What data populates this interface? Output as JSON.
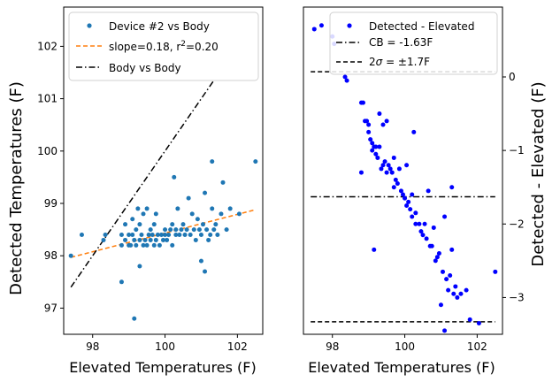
{
  "chart_data": [
    {
      "type": "scatter",
      "xlabel": "Elevated Temperatures (F)",
      "ylabel": "Detected Temperatures (F)",
      "xlim": [
        97.2,
        102.7
      ],
      "ylim": [
        96.5,
        102.75
      ],
      "xticks": [
        "98",
        "100",
        "102"
      ],
      "yticks": [
        "97",
        "98",
        "99",
        "100",
        "101",
        "102"
      ],
      "legend_position": "upper-left",
      "colors": {
        "points": "#1f77b4",
        "fit": "#ff7f0e",
        "identity": "#000000"
      },
      "legend": [
        {
          "label": "Device #2 vs Body",
          "style": "marker"
        },
        {
          "label": "slope=0.18, r²=0.20",
          "prefix": "slope=0.18, r",
          "sup": "2",
          "suffix": "=0.20",
          "style": "dashed"
        },
        {
          "label": "Body vs Body",
          "style": "dashdot"
        }
      ],
      "series": [
        {
          "name": "Device #2 vs Body",
          "points": [
            [
              97.4,
              98.0
            ],
            [
              97.7,
              98.4
            ],
            [
              98.3,
              98.3
            ],
            [
              98.35,
              98.4
            ],
            [
              98.8,
              98.2
            ],
            [
              98.8,
              97.5
            ],
            [
              98.8,
              98.4
            ],
            [
              98.9,
              98.3
            ],
            [
              98.9,
              98.6
            ],
            [
              99.0,
              98.2
            ],
            [
              99.0,
              98.4
            ],
            [
              99.05,
              98.2
            ],
            [
              99.1,
              98.7
            ],
            [
              99.1,
              98.4
            ],
            [
              99.15,
              96.8
            ],
            [
              99.15,
              98.3
            ],
            [
              99.2,
              98.2
            ],
            [
              99.2,
              98.5
            ],
            [
              99.25,
              98.9
            ],
            [
              99.3,
              97.8
            ],
            [
              99.3,
              98.3
            ],
            [
              99.3,
              98.6
            ],
            [
              99.35,
              98.4
            ],
            [
              99.4,
              98.2
            ],
            [
              99.4,
              98.8
            ],
            [
              99.45,
              98.3
            ],
            [
              99.5,
              98.2
            ],
            [
              99.5,
              98.9
            ],
            [
              99.55,
              98.4
            ],
            [
              99.6,
              98.3
            ],
            [
              99.6,
              98.5
            ],
            [
              99.65,
              98.4
            ],
            [
              99.7,
              98.6
            ],
            [
              99.7,
              98.2
            ],
            [
              99.75,
              98.8
            ],
            [
              99.75,
              98.3
            ],
            [
              99.8,
              98.4
            ],
            [
              99.85,
              98.2
            ],
            [
              99.9,
              98.4
            ],
            [
              99.95,
              98.3
            ],
            [
              100.0,
              98.4
            ],
            [
              100.0,
              98.5
            ],
            [
              100.05,
              98.3
            ],
            [
              100.1,
              98.4
            ],
            [
              100.15,
              98.5
            ],
            [
              100.2,
              98.2
            ],
            [
              100.2,
              98.6
            ],
            [
              100.25,
              99.5
            ],
            [
              100.3,
              98.4
            ],
            [
              100.3,
              98.5
            ],
            [
              100.35,
              98.9
            ],
            [
              100.4,
              98.4
            ],
            [
              100.45,
              98.5
            ],
            [
              100.5,
              98.6
            ],
            [
              100.55,
              98.4
            ],
            [
              100.6,
              98.5
            ],
            [
              100.65,
              99.1
            ],
            [
              100.7,
              98.4
            ],
            [
              100.75,
              98.8
            ],
            [
              100.8,
              98.5
            ],
            [
              100.85,
              98.3
            ],
            [
              100.9,
              98.7
            ],
            [
              100.95,
              98.5
            ],
            [
              101.0,
              97.9
            ],
            [
              101.0,
              98.4
            ],
            [
              101.05,
              98.6
            ],
            [
              101.1,
              99.2
            ],
            [
              101.1,
              97.7
            ],
            [
              101.15,
              98.5
            ],
            [
              101.2,
              98.3
            ],
            [
              101.25,
              98.4
            ],
            [
              101.3,
              99.8
            ],
            [
              101.3,
              98.9
            ],
            [
              101.35,
              98.5
            ],
            [
              101.4,
              98.6
            ],
            [
              101.45,
              98.4
            ],
            [
              101.55,
              98.8
            ],
            [
              101.6,
              99.4
            ],
            [
              101.7,
              98.5
            ],
            [
              101.8,
              98.9
            ],
            [
              102.05,
              98.8
            ],
            [
              102.5,
              99.8
            ]
          ]
        },
        {
          "name": "slope=0.18, r²=0.20",
          "line": [
            [
              97.4,
              97.97
            ],
            [
              102.5,
              98.88
            ]
          ]
        },
        {
          "name": "Body vs Body",
          "line": [
            [
              97.4,
              97.4
            ],
            [
              102.5,
              102.5
            ]
          ]
        }
      ]
    },
    {
      "type": "scatter",
      "xlabel": "Elevated Temperatures (F)",
      "ylabel": "Detected - Elevated (F)",
      "xlim": [
        97.2,
        102.7
      ],
      "ylim": [
        -3.5,
        0.95
      ],
      "xticks": [
        "98",
        "100",
        "102"
      ],
      "yticks": [
        "0",
        "−1",
        "−2",
        "−3"
      ],
      "legend_position": "upper-right",
      "colors": {
        "points": "#0000ff",
        "lines": "#000000",
        "grey": "#bdbdbd"
      },
      "legend": [
        {
          "label": "Detected - Elevated",
          "style": "marker"
        },
        {
          "label": "CB = -1.63F",
          "style": "dashdot"
        },
        {
          "label": "2σ = ±1.7F",
          "prefix": "2",
          "italic": "σ",
          "suffix": " = ±1.7F",
          "style": "dashed"
        }
      ],
      "series": [
        {
          "name": "Detected - Elevated",
          "points": [
            [
              97.5,
              0.65
            ],
            [
              97.7,
              0.7
            ],
            [
              98.0,
              0.55
            ],
            [
              98.05,
              0.45
            ],
            [
              98.35,
              0.0
            ],
            [
              98.4,
              -0.05
            ],
            [
              98.8,
              -0.35
            ],
            [
              98.8,
              -1.3
            ],
            [
              98.85,
              -0.35
            ],
            [
              98.9,
              -0.6
            ],
            [
              98.95,
              -0.6
            ],
            [
              99.0,
              -0.75
            ],
            [
              99.0,
              -0.65
            ],
            [
              99.05,
              -0.85
            ],
            [
              99.1,
              -0.9
            ],
            [
              99.1,
              -1.0
            ],
            [
              99.15,
              -2.35
            ],
            [
              99.15,
              -0.95
            ],
            [
              99.2,
              -1.05
            ],
            [
              99.2,
              -0.95
            ],
            [
              99.25,
              -1.1
            ],
            [
              99.3,
              -0.5
            ],
            [
              99.3,
              -0.95
            ],
            [
              99.35,
              -1.25
            ],
            [
              99.4,
              -1.2
            ],
            [
              99.4,
              -0.65
            ],
            [
              99.45,
              -1.15
            ],
            [
              99.5,
              -1.3
            ],
            [
              99.5,
              -0.6
            ],
            [
              99.55,
              -1.2
            ],
            [
              99.6,
              -1.25
            ],
            [
              99.65,
              -1.3
            ],
            [
              99.7,
              -1.1
            ],
            [
              99.7,
              -1.5
            ],
            [
              99.75,
              -1.4
            ],
            [
              99.8,
              -1.45
            ],
            [
              99.85,
              -1.25
            ],
            [
              99.9,
              -1.55
            ],
            [
              99.95,
              -1.6
            ],
            [
              100.0,
              -1.65
            ],
            [
              100.05,
              -1.2
            ],
            [
              100.05,
              -1.75
            ],
            [
              100.1,
              -1.7
            ],
            [
              100.15,
              -1.8
            ],
            [
              100.2,
              -1.6
            ],
            [
              100.2,
              -1.9
            ],
            [
              100.25,
              -0.75
            ],
            [
              100.3,
              -1.85
            ],
            [
              100.3,
              -2.0
            ],
            [
              100.4,
              -2.0
            ],
            [
              100.45,
              -2.1
            ],
            [
              100.5,
              -2.15
            ],
            [
              100.55,
              -2.0
            ],
            [
              100.6,
              -2.2
            ],
            [
              100.65,
              -1.55
            ],
            [
              100.7,
              -2.3
            ],
            [
              100.75,
              -2.3
            ],
            [
              100.8,
              -2.05
            ],
            [
              100.85,
              -2.5
            ],
            [
              100.9,
              -2.45
            ],
            [
              100.95,
              -2.4
            ],
            [
              101.0,
              -3.1
            ],
            [
              101.05,
              -2.65
            ],
            [
              101.1,
              -1.9
            ],
            [
              101.1,
              -3.45
            ],
            [
              101.15,
              -2.75
            ],
            [
              101.2,
              -2.9
            ],
            [
              101.25,
              -2.7
            ],
            [
              101.3,
              -1.5
            ],
            [
              101.3,
              -2.35
            ],
            [
              101.35,
              -2.95
            ],
            [
              101.4,
              -2.85
            ],
            [
              101.45,
              -3.0
            ],
            [
              101.55,
              -2.95
            ],
            [
              101.7,
              -2.9
            ],
            [
              101.8,
              -3.3
            ],
            [
              102.05,
              -3.35
            ],
            [
              102.5,
              -2.65
            ]
          ]
        },
        {
          "name": "CB = -1.63F",
          "line": [
            [
              97.4,
              -1.63
            ],
            [
              102.5,
              -1.63
            ]
          ]
        },
        {
          "name": "2σ = ±1.7F",
          "lines": [
            [
              [
                97.4,
                0.07
              ],
              [
                102.5,
                0.07
              ]
            ],
            [
              [
                97.4,
                -3.33
              ],
              [
                102.5,
                -3.33
              ]
            ]
          ]
        }
      ]
    }
  ]
}
